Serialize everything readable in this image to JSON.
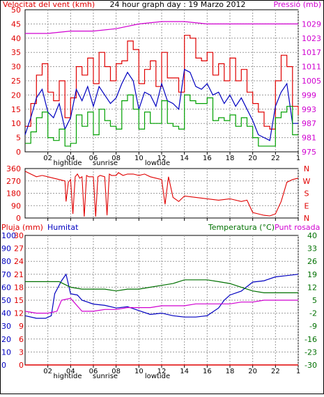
{
  "panel1": {
    "left_title": "Velocitat del vent (kmh)",
    "center_title": "24 hour graph day : 19 Marzo 2012",
    "right_title": "Pressió (mb)"
  },
  "panel3": {
    "label_pluja": "Pluja (mm)",
    "label_humitat": "Humitat",
    "label_temp": "Temperatura (°C)",
    "label_dew": "Punt rosada"
  },
  "x_markers": {
    "hightide": "hightide",
    "sunrise": "sunrise",
    "lowtide": "lowtide"
  },
  "colors": {
    "wind_max": "#e00000",
    "wind_avg": "#0000c0",
    "wind_min": "#00a000",
    "pressure": "#d000d0",
    "direction": "#e00000",
    "humidity": "#0000c0",
    "temperature": "#007000",
    "dewpoint": "#d000d0",
    "rain": "#e00000"
  },
  "chart_data": [
    {
      "type": "line",
      "x_ticks": [
        "02",
        "04",
        "06",
        "08",
        "10",
        "12",
        "14",
        "16",
        "18",
        "20",
        "22",
        "1"
      ],
      "xlim": [
        0,
        24
      ],
      "ylim_left": [
        0,
        50
      ],
      "yticks_left": [
        0,
        5,
        10,
        15,
        20,
        25,
        30,
        35,
        40,
        45,
        50
      ],
      "ylim_right": [
        975,
        1035
      ],
      "yticks_right": [
        975,
        981,
        987,
        993,
        999,
        1005,
        1011,
        1017,
        1023,
        1029
      ],
      "series": [
        {
          "key": "wind_max",
          "axis": "left",
          "x": [
            0,
            0.5,
            1,
            1.5,
            2,
            2.5,
            3,
            3.5,
            4,
            4.5,
            5,
            5.5,
            6,
            6.5,
            7,
            7.5,
            8,
            8.5,
            9,
            9.5,
            10,
            10.5,
            11,
            11.5,
            12,
            12.5,
            13,
            13.5,
            14,
            14.5,
            15,
            15.5,
            16,
            16.5,
            17,
            17.5,
            18,
            18.5,
            19,
            19.5,
            20,
            20.5,
            21,
            21.5,
            22,
            22.5,
            23,
            23.5,
            24
          ],
          "values": [
            9,
            17,
            27,
            31,
            21,
            18,
            25,
            12,
            19,
            30,
            27,
            33,
            24,
            35,
            30,
            25,
            31,
            32,
            39,
            36,
            24,
            29,
            32,
            23,
            35,
            26,
            26,
            21,
            41,
            40,
            33,
            32,
            35,
            27,
            31,
            25,
            33,
            25,
            29,
            21,
            17,
            14,
            9,
            8,
            25,
            34,
            30,
            16,
            13
          ]
        },
        {
          "key": "wind_avg",
          "axis": "left",
          "x": [
            0,
            0.5,
            1,
            1.5,
            2,
            2.5,
            3,
            3.5,
            4,
            4.5,
            5,
            5.5,
            6,
            6.5,
            7,
            7.5,
            8,
            8.5,
            9,
            9.5,
            10,
            10.5,
            11,
            11.5,
            12,
            12.5,
            13,
            13.5,
            14,
            14.5,
            15,
            15.5,
            16,
            16.5,
            17,
            17.5,
            18,
            18.5,
            19,
            19.5,
            20,
            20.5,
            21,
            21.5,
            22,
            22.5,
            23,
            23.5,
            24
          ],
          "values": [
            6,
            12,
            19,
            22,
            14,
            12,
            17,
            8,
            12,
            22,
            18,
            23,
            16,
            23,
            20,
            17,
            19,
            24,
            28,
            25,
            15,
            21,
            20,
            16,
            24,
            18,
            17,
            15,
            29,
            28,
            23,
            22,
            24,
            20,
            21,
            17,
            20,
            16,
            19,
            15,
            11,
            6,
            5,
            4,
            16,
            21,
            24,
            10,
            10
          ]
        },
        {
          "key": "wind_min",
          "axis": "left",
          "x": [
            0,
            0.5,
            1,
            1.5,
            2,
            2.5,
            3,
            3.5,
            4,
            4.5,
            5,
            5.5,
            6,
            6.5,
            7,
            7.5,
            8,
            8.5,
            9,
            9.5,
            10,
            10.5,
            11,
            11.5,
            12,
            12.5,
            13,
            13.5,
            14,
            14.5,
            15,
            15.5,
            16,
            16.5,
            17,
            17.5,
            18,
            18.5,
            19,
            19.5,
            20,
            20.5,
            21,
            21.5,
            22,
            22.5,
            23,
            23.5,
            24
          ],
          "values": [
            3,
            7,
            12,
            14,
            5,
            4,
            8,
            2,
            3,
            13,
            9,
            14,
            6,
            15,
            11,
            9,
            8,
            18,
            20,
            15,
            8,
            14,
            10,
            10,
            18,
            10,
            9,
            8,
            20,
            18,
            17,
            17,
            19,
            11,
            12,
            11,
            13,
            9,
            12,
            9,
            5,
            2,
            2,
            2,
            12,
            14,
            16,
            6,
            6
          ]
        },
        {
          "key": "pressure",
          "axis": "right",
          "x": [
            0,
            2,
            4,
            6,
            8,
            10,
            12,
            14,
            16,
            18,
            20,
            22,
            24
          ],
          "values": [
            1025,
            1025,
            1026,
            1026,
            1027,
            1029,
            1030,
            1030,
            1029,
            1029,
            1029,
            1029,
            1029
          ]
        }
      ]
    },
    {
      "type": "line",
      "x_ticks": [
        "02",
        "04",
        "06",
        "08",
        "10",
        "12",
        "14",
        "16",
        "18",
        "20",
        "22",
        "1"
      ],
      "xlim": [
        0,
        24
      ],
      "ylim": [
        0,
        360
      ],
      "yticks": [
        0,
        90,
        180,
        270,
        360
      ],
      "right_labels": [
        "N",
        "W",
        "S",
        "E",
        "N"
      ],
      "series": [
        {
          "key": "direction",
          "x": [
            0,
            0.5,
            1,
            1.5,
            2,
            2.5,
            3,
            3.5,
            3.6,
            3.8,
            4,
            4.2,
            4.4,
            4.6,
            4.8,
            5,
            5.2,
            5.4,
            5.6,
            6,
            6.2,
            6.4,
            6.6,
            7,
            7.2,
            7.4,
            7.6,
            8,
            8.2,
            8.4,
            8.6,
            9,
            9.5,
            10,
            10.5,
            11,
            11.5,
            12,
            12.3,
            12.6,
            13,
            13.5,
            14,
            15,
            16,
            17,
            18,
            19,
            19.5,
            20,
            20.5,
            21,
            21.5,
            22,
            22.5,
            23,
            23.5,
            24
          ],
          "values": [
            340,
            320,
            300,
            310,
            300,
            290,
            280,
            270,
            120,
            260,
            280,
            30,
            300,
            320,
            290,
            300,
            10,
            310,
            300,
            300,
            10,
            300,
            310,
            300,
            20,
            320,
            310,
            310,
            330,
            320,
            310,
            320,
            320,
            310,
            320,
            300,
            290,
            280,
            100,
            300,
            150,
            120,
            160,
            150,
            140,
            130,
            140,
            120,
            130,
            40,
            30,
            20,
            15,
            30,
            120,
            260,
            280,
            290
          ]
        }
      ]
    },
    {
      "type": "line",
      "x_ticks": [
        "02",
        "04",
        "06",
        "08",
        "10",
        "12",
        "14",
        "16",
        "18",
        "20",
        "22",
        "1"
      ],
      "xlim": [
        0,
        24
      ],
      "ylim_left_humidity": [
        0,
        100
      ],
      "yticks_left_humidity": [
        0,
        10,
        20,
        30,
        40,
        50,
        60,
        70,
        80,
        90,
        100
      ],
      "ylim_left_rain": [
        0,
        30
      ],
      "yticks_left_rain": [
        0,
        3,
        6,
        9,
        12,
        15,
        18,
        21,
        24,
        27,
        30
      ],
      "ylim_right": [
        -30,
        40
      ],
      "yticks_right": [
        -30,
        -23,
        -16,
        -9,
        -2,
        5,
        12,
        19,
        26,
        33,
        40
      ],
      "series": [
        {
          "key": "humidity",
          "axis": "left_humidity",
          "x": [
            0,
            1,
            1.8,
            2.3,
            2.6,
            3.2,
            3.6,
            4,
            4.6,
            5,
            6,
            7,
            8,
            9,
            10,
            11,
            12,
            13,
            14,
            15,
            16,
            17,
            17.5,
            18,
            19,
            20,
            21,
            22,
            23,
            24
          ],
          "values": [
            38,
            36,
            36,
            38,
            55,
            65,
            70,
            55,
            54,
            50,
            47,
            46,
            44,
            45,
            42,
            39,
            40,
            38,
            37,
            37,
            38,
            44,
            50,
            54,
            57,
            64,
            65,
            68,
            69,
            70
          ]
        },
        {
          "key": "temperature",
          "axis": "right",
          "x": [
            0,
            1,
            2,
            3,
            4,
            5,
            6,
            7,
            8,
            9,
            10,
            11,
            12,
            13,
            14,
            15,
            16,
            17,
            18,
            19,
            20,
            21,
            22,
            23,
            24
          ],
          "values": [
            15,
            15,
            15,
            15,
            12,
            11,
            11,
            11,
            10,
            11,
            11,
            12,
            13,
            14,
            16,
            16,
            16,
            15,
            14,
            12,
            10,
            9,
            9,
            9,
            9
          ]
        },
        {
          "key": "dewpoint",
          "axis": "right",
          "x": [
            0,
            1,
            2,
            2.8,
            3.2,
            4,
            5,
            6,
            7,
            8,
            9,
            10,
            11,
            12,
            13,
            14,
            15,
            16,
            17,
            18,
            19,
            20,
            21,
            22,
            23,
            24
          ],
          "values": [
            -1,
            -2,
            -2,
            -1,
            5,
            6,
            -1,
            -1,
            0,
            0,
            1,
            1,
            1,
            2,
            2,
            2,
            3,
            3,
            3,
            3,
            4,
            4,
            5,
            5,
            5,
            5
          ]
        },
        {
          "key": "rain",
          "axis": "left_rain",
          "x": [
            0,
            24
          ],
          "values": [
            0,
            0
          ]
        }
      ]
    }
  ]
}
